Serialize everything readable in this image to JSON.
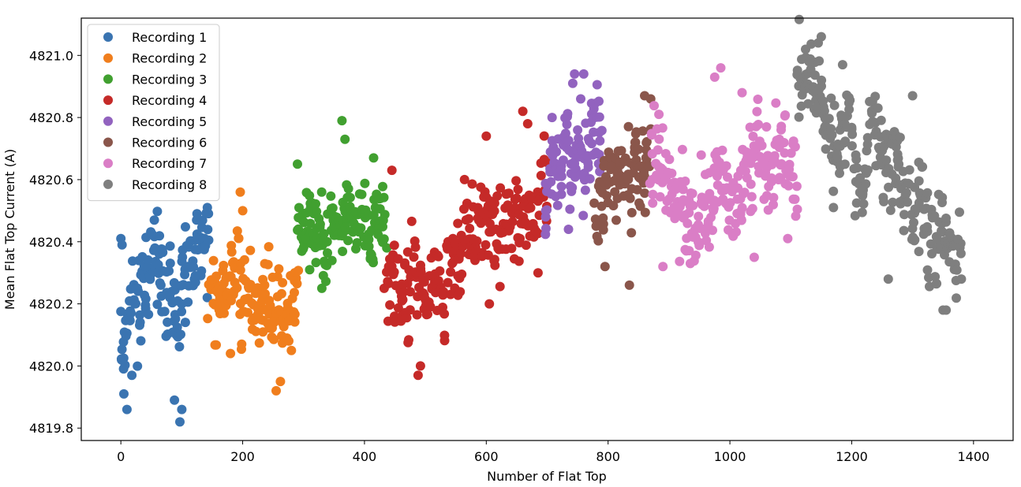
{
  "chart_data": {
    "type": "scatter",
    "title": "",
    "xlabel": "Number of Flat Top",
    "ylabel": "Mean Flat Top Current (A)",
    "xlim": [
      -65,
      1465
    ],
    "ylim": [
      4819.76,
      4821.12
    ],
    "xticks": [
      "0",
      "200",
      "400",
      "600",
      "800",
      "1000",
      "1200",
      "1400"
    ],
    "yticks": [
      "4819.8",
      "4820.0",
      "4820.2",
      "4820.4",
      "4820.6",
      "4820.8",
      "4821.0"
    ],
    "grid": false,
    "legend_position": "top-left",
    "series": [
      {
        "name": "Recording 1",
        "color": "#3a74b1",
        "x_range": [
          0,
          145
        ],
        "base_start": 4820.22,
        "base_end": 4820.3,
        "spread": 0.11,
        "seed": 11,
        "count": 150,
        "extremes": [
          [
            0,
            4820.41
          ],
          [
            2,
            4820.39
          ],
          [
            5,
            4819.91
          ],
          [
            10,
            4819.86
          ],
          [
            18,
            4819.97
          ],
          [
            55,
            4820.47
          ],
          [
            97,
            4819.82
          ],
          [
            100,
            4819.86
          ],
          [
            125,
            4820.49
          ],
          [
            142,
            4820.51
          ],
          [
            88,
            4819.89
          ]
        ]
      },
      {
        "name": "Recording 2",
        "color": "#f07e1d",
        "x_range": [
          145,
          290
        ],
        "base_start": 4820.28,
        "base_end": 4820.12,
        "spread": 0.1,
        "seed": 23,
        "count": 140,
        "extremes": [
          [
            196,
            4820.56
          ],
          [
            200,
            4820.5
          ],
          [
            255,
            4819.92
          ],
          [
            262,
            4819.95
          ],
          [
            180,
            4820.04
          ],
          [
            280,
            4820.05
          ]
        ]
      },
      {
        "name": "Recording 3",
        "color": "#41a030",
        "x_range": [
          290,
          435
        ],
        "base_start": 4820.45,
        "base_end": 4820.47,
        "spread": 0.08,
        "seed": 37,
        "count": 150,
        "extremes": [
          [
            363,
            4820.79
          ],
          [
            368,
            4820.73
          ],
          [
            330,
            4820.25
          ],
          [
            310,
            4820.31
          ],
          [
            290,
            4820.65
          ],
          [
            415,
            4820.67
          ]
        ]
      },
      {
        "name": "Recording 4",
        "color": "#c52a28",
        "x_range": [
          435,
          700
        ],
        "base_start": 4820.2,
        "base_end": 4820.55,
        "spread": 0.1,
        "seed": 53,
        "count": 240,
        "extremes": [
          [
            488,
            4819.97
          ],
          [
            492,
            4820.0
          ],
          [
            445,
            4820.63
          ],
          [
            660,
            4820.82
          ],
          [
            668,
            4820.78
          ],
          [
            600,
            4820.74
          ],
          [
            685,
            4820.3
          ],
          [
            605,
            4820.2
          ]
        ]
      },
      {
        "name": "Recording 5",
        "color": "#9263bf",
        "x_range": [
          695,
          790
        ],
        "base_start": 4820.55,
        "base_end": 4820.75,
        "spread": 0.1,
        "seed": 67,
        "count": 100,
        "extremes": [
          [
            745,
            4820.94
          ],
          [
            760,
            4820.94
          ],
          [
            742,
            4820.91
          ],
          [
            755,
            4820.86
          ],
          [
            735,
            4820.44
          ],
          [
            708,
            4820.8
          ]
        ]
      },
      {
        "name": "Recording 6",
        "color": "#8a564b",
        "x_range": [
          780,
          870
        ],
        "base_start": 4820.48,
        "base_end": 4820.72,
        "spread": 0.1,
        "seed": 79,
        "count": 100,
        "extremes": [
          [
            835,
            4820.26
          ],
          [
            795,
            4820.32
          ],
          [
            860,
            4820.87
          ],
          [
            870,
            4820.86
          ],
          [
            845,
            4820.72
          ]
        ]
      },
      {
        "name": "Recording 7",
        "color": "#da7ec6",
        "x_range": [
          870,
          1110
        ],
        "base_start": 4820.5,
        "base_end": 4820.62,
        "spread": 0.11,
        "seed": 89,
        "count": 240,
        "extremes": [
          [
            985,
            4820.96
          ],
          [
            975,
            4820.93
          ],
          [
            890,
            4820.32
          ],
          [
            935,
            4820.33
          ],
          [
            1020,
            4820.88
          ],
          [
            1040,
            4820.35
          ],
          [
            1095,
            4820.41
          ]
        ]
      },
      {
        "name": "Recording 8",
        "color": "#7f7f7f",
        "x_range": [
          1110,
          1380
        ],
        "base_start": 4820.92,
        "base_end": 4820.35,
        "spread": 0.11,
        "seed": 97,
        "count": 260,
        "extremes": [
          [
            1150,
            4821.06
          ],
          [
            1145,
            4821.04
          ],
          [
            1130,
            4820.98
          ],
          [
            1185,
            4820.97
          ],
          [
            1300,
            4820.87
          ],
          [
            1350,
            4820.18
          ],
          [
            1355,
            4820.18
          ],
          [
            1260,
            4820.28
          ],
          [
            1380,
            4820.28
          ],
          [
            1170,
            4820.51
          ]
        ]
      }
    ]
  }
}
